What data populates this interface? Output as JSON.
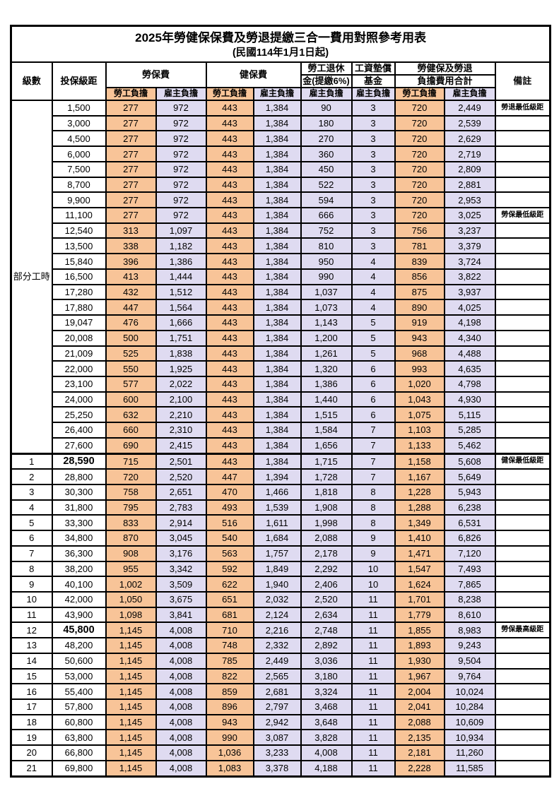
{
  "title": "2025年勞健保保費及勞退提繳三合一費用對照參考用表",
  "subtitle": "(民國114年1月1日起)",
  "columns": {
    "level": "級數",
    "bracket": "投保級距",
    "labor_insurance": "勞保費",
    "health_insurance": "健保費",
    "pension_line1": "勞工退休",
    "pension_line2": "金(提繳6%)",
    "wage_fund_line1": "工資墊償",
    "wage_fund_line2": "基金",
    "total_line1": "勞健保及勞退",
    "total_line2": "負擔費用合計",
    "notes": "備註"
  },
  "subheaders": {
    "employee": "勞工負擔",
    "employer": "雇主負擔"
  },
  "part_time": {
    "label": "部分工時",
    "rowspan": 23
  },
  "colors": {
    "employee_fill": "#F8C498",
    "employer_fill": "#DFDBF1",
    "highlight_value": "#E85A5A",
    "note_red": "#F13E3E",
    "border": "#000000"
  },
  "rows": [
    {
      "level": "",
      "bracket": "1,500",
      "values": [
        "277",
        "972",
        "443",
        "1,384",
        "90",
        "3",
        "720",
        "2,449"
      ],
      "note": "勞退最低級距",
      "highlight": true,
      "bold_bracket": false,
      "section_start": false
    },
    {
      "level": "",
      "bracket": "3,000",
      "values": [
        "277",
        "972",
        "443",
        "1,384",
        "180",
        "3",
        "720",
        "2,539"
      ],
      "note": "",
      "highlight": false,
      "bold_bracket": false,
      "section_start": false
    },
    {
      "level": "",
      "bracket": "4,500",
      "values": [
        "277",
        "972",
        "443",
        "1,384",
        "270",
        "3",
        "720",
        "2,629"
      ],
      "note": "",
      "highlight": false,
      "bold_bracket": false,
      "section_start": false
    },
    {
      "level": "",
      "bracket": "6,000",
      "values": [
        "277",
        "972",
        "443",
        "1,384",
        "360",
        "3",
        "720",
        "2,719"
      ],
      "note": "",
      "highlight": false,
      "bold_bracket": false,
      "section_start": false
    },
    {
      "level": "",
      "bracket": "7,500",
      "values": [
        "277",
        "972",
        "443",
        "1,384",
        "450",
        "3",
        "720",
        "2,809"
      ],
      "note": "",
      "highlight": false,
      "bold_bracket": false,
      "section_start": false
    },
    {
      "level": "",
      "bracket": "8,700",
      "values": [
        "277",
        "972",
        "443",
        "1,384",
        "522",
        "3",
        "720",
        "2,881"
      ],
      "note": "",
      "highlight": false,
      "bold_bracket": false,
      "section_start": false
    },
    {
      "level": "",
      "bracket": "9,900",
      "values": [
        "277",
        "972",
        "443",
        "1,384",
        "594",
        "3",
        "720",
        "2,953"
      ],
      "note": "",
      "highlight": false,
      "bold_bracket": false,
      "section_start": false
    },
    {
      "level": "",
      "bracket": "11,100",
      "values": [
        "277",
        "972",
        "443",
        "1,384",
        "666",
        "3",
        "720",
        "3,025"
      ],
      "note": "勞保最低級距",
      "highlight": true,
      "bold_bracket": false,
      "section_start": false
    },
    {
      "level": "",
      "bracket": "12,540",
      "values": [
        "313",
        "1,097",
        "443",
        "1,384",
        "752",
        "3",
        "756",
        "3,237"
      ],
      "note": "",
      "highlight": false,
      "bold_bracket": false,
      "section_start": false
    },
    {
      "level": "",
      "bracket": "13,500",
      "values": [
        "338",
        "1,182",
        "443",
        "1,384",
        "810",
        "3",
        "781",
        "3,379"
      ],
      "note": "",
      "highlight": false,
      "bold_bracket": false,
      "section_start": false
    },
    {
      "level": "",
      "bracket": "15,840",
      "values": [
        "396",
        "1,386",
        "443",
        "1,384",
        "950",
        "4",
        "839",
        "3,724"
      ],
      "note": "",
      "highlight": false,
      "bold_bracket": false,
      "section_start": false
    },
    {
      "level": "",
      "bracket": "16,500",
      "values": [
        "413",
        "1,444",
        "443",
        "1,384",
        "990",
        "4",
        "856",
        "3,822"
      ],
      "note": "",
      "highlight": false,
      "bold_bracket": false,
      "section_start": false
    },
    {
      "level": "",
      "bracket": "17,280",
      "values": [
        "432",
        "1,512",
        "443",
        "1,384",
        "1,037",
        "4",
        "875",
        "3,937"
      ],
      "note": "",
      "highlight": false,
      "bold_bracket": false,
      "section_start": false
    },
    {
      "level": "",
      "bracket": "17,880",
      "values": [
        "447",
        "1,564",
        "443",
        "1,384",
        "1,073",
        "4",
        "890",
        "4,025"
      ],
      "note": "",
      "highlight": false,
      "bold_bracket": false,
      "section_start": false
    },
    {
      "level": "",
      "bracket": "19,047",
      "values": [
        "476",
        "1,666",
        "443",
        "1,384",
        "1,143",
        "5",
        "919",
        "4,198"
      ],
      "note": "",
      "highlight": false,
      "bold_bracket": false,
      "section_start": false
    },
    {
      "level": "",
      "bracket": "20,008",
      "values": [
        "500",
        "1,751",
        "443",
        "1,384",
        "1,200",
        "5",
        "943",
        "4,340"
      ],
      "note": "",
      "highlight": false,
      "bold_bracket": false,
      "section_start": false
    },
    {
      "level": "",
      "bracket": "21,009",
      "values": [
        "525",
        "1,838",
        "443",
        "1,384",
        "1,261",
        "5",
        "968",
        "4,488"
      ],
      "note": "",
      "highlight": false,
      "bold_bracket": false,
      "section_start": false
    },
    {
      "level": "",
      "bracket": "22,000",
      "values": [
        "550",
        "1,925",
        "443",
        "1,384",
        "1,320",
        "6",
        "993",
        "4,635"
      ],
      "note": "",
      "highlight": false,
      "bold_bracket": false,
      "section_start": false
    },
    {
      "level": "",
      "bracket": "23,100",
      "values": [
        "577",
        "2,022",
        "443",
        "1,384",
        "1,386",
        "6",
        "1,020",
        "4,798"
      ],
      "note": "",
      "highlight": false,
      "bold_bracket": false,
      "section_start": false
    },
    {
      "level": "",
      "bracket": "24,000",
      "values": [
        "600",
        "2,100",
        "443",
        "1,384",
        "1,440",
        "6",
        "1,043",
        "4,930"
      ],
      "note": "",
      "highlight": false,
      "bold_bracket": false,
      "section_start": false
    },
    {
      "level": "",
      "bracket": "25,250",
      "values": [
        "632",
        "2,210",
        "443",
        "1,384",
        "1,515",
        "6",
        "1,075",
        "5,115"
      ],
      "note": "",
      "highlight": false,
      "bold_bracket": false,
      "section_start": false
    },
    {
      "level": "",
      "bracket": "26,400",
      "values": [
        "660",
        "2,310",
        "443",
        "1,384",
        "1,584",
        "7",
        "1,103",
        "5,285"
      ],
      "note": "",
      "highlight": false,
      "bold_bracket": false,
      "section_start": false
    },
    {
      "level": "",
      "bracket": "27,600",
      "values": [
        "690",
        "2,415",
        "443",
        "1,384",
        "1,656",
        "7",
        "1,133",
        "5,462"
      ],
      "note": "",
      "highlight": false,
      "bold_bracket": false,
      "section_start": false
    },
    {
      "level": "1",
      "bracket": "28,590",
      "values": [
        "715",
        "2,501",
        "443",
        "1,384",
        "1,715",
        "7",
        "1,158",
        "5,608"
      ],
      "note": "健保最低級距",
      "highlight": true,
      "bold_bracket": true,
      "section_start": true
    },
    {
      "level": "2",
      "bracket": "28,800",
      "values": [
        "720",
        "2,520",
        "447",
        "1,394",
        "1,728",
        "7",
        "1,167",
        "5,649"
      ],
      "note": "",
      "highlight": false,
      "bold_bracket": false,
      "section_start": false
    },
    {
      "level": "3",
      "bracket": "30,300",
      "values": [
        "758",
        "2,651",
        "470",
        "1,466",
        "1,818",
        "8",
        "1,228",
        "5,943"
      ],
      "note": "",
      "highlight": false,
      "bold_bracket": false,
      "section_start": false
    },
    {
      "level": "4",
      "bracket": "31,800",
      "values": [
        "795",
        "2,783",
        "493",
        "1,539",
        "1,908",
        "8",
        "1,288",
        "6,238"
      ],
      "note": "",
      "highlight": false,
      "bold_bracket": false,
      "section_start": false
    },
    {
      "level": "5",
      "bracket": "33,300",
      "values": [
        "833",
        "2,914",
        "516",
        "1,611",
        "1,998",
        "8",
        "1,349",
        "6,531"
      ],
      "note": "",
      "highlight": false,
      "bold_bracket": false,
      "section_start": false
    },
    {
      "level": "6",
      "bracket": "34,800",
      "values": [
        "870",
        "3,045",
        "540",
        "1,684",
        "2,088",
        "9",
        "1,410",
        "6,826"
      ],
      "note": "",
      "highlight": false,
      "bold_bracket": false,
      "section_start": false
    },
    {
      "level": "7",
      "bracket": "36,300",
      "values": [
        "908",
        "3,176",
        "563",
        "1,757",
        "2,178",
        "9",
        "1,471",
        "7,120"
      ],
      "note": "",
      "highlight": false,
      "bold_bracket": false,
      "section_start": false
    },
    {
      "level": "8",
      "bracket": "38,200",
      "values": [
        "955",
        "3,342",
        "592",
        "1,849",
        "2,292",
        "10",
        "1,547",
        "7,493"
      ],
      "note": "",
      "highlight": false,
      "bold_bracket": false,
      "section_start": false
    },
    {
      "level": "9",
      "bracket": "40,100",
      "values": [
        "1,002",
        "3,509",
        "622",
        "1,940",
        "2,406",
        "10",
        "1,624",
        "7,865"
      ],
      "note": "",
      "highlight": false,
      "bold_bracket": false,
      "section_start": false
    },
    {
      "level": "10",
      "bracket": "42,000",
      "values": [
        "1,050",
        "3,675",
        "651",
        "2,032",
        "2,520",
        "11",
        "1,701",
        "8,238"
      ],
      "note": "",
      "highlight": false,
      "bold_bracket": false,
      "section_start": false
    },
    {
      "level": "11",
      "bracket": "43,900",
      "values": [
        "1,098",
        "3,841",
        "681",
        "2,124",
        "2,634",
        "11",
        "1,779",
        "8,610"
      ],
      "note": "",
      "highlight": false,
      "bold_bracket": false,
      "section_start": false
    },
    {
      "level": "12",
      "bracket": "45,800",
      "values": [
        "1,145",
        "4,008",
        "710",
        "2,216",
        "2,748",
        "11",
        "1,855",
        "8,983"
      ],
      "note": "勞保最高級距",
      "highlight": true,
      "bold_bracket": true,
      "section_start": false
    },
    {
      "level": "13",
      "bracket": "48,200",
      "values": [
        "1,145",
        "4,008",
        "748",
        "2,332",
        "2,892",
        "11",
        "1,893",
        "9,243"
      ],
      "note": "",
      "highlight": false,
      "bold_bracket": false,
      "section_start": false
    },
    {
      "level": "14",
      "bracket": "50,600",
      "values": [
        "1,145",
        "4,008",
        "785",
        "2,449",
        "3,036",
        "11",
        "1,930",
        "9,504"
      ],
      "note": "",
      "highlight": false,
      "bold_bracket": false,
      "section_start": false
    },
    {
      "level": "15",
      "bracket": "53,000",
      "values": [
        "1,145",
        "4,008",
        "822",
        "2,565",
        "3,180",
        "11",
        "1,967",
        "9,764"
      ],
      "note": "",
      "highlight": false,
      "bold_bracket": false,
      "section_start": false
    },
    {
      "level": "16",
      "bracket": "55,400",
      "values": [
        "1,145",
        "4,008",
        "859",
        "2,681",
        "3,324",
        "11",
        "2,004",
        "10,024"
      ],
      "note": "",
      "highlight": false,
      "bold_bracket": false,
      "section_start": false
    },
    {
      "level": "17",
      "bracket": "57,800",
      "values": [
        "1,145",
        "4,008",
        "896",
        "2,797",
        "3,468",
        "11",
        "2,041",
        "10,284"
      ],
      "note": "",
      "highlight": false,
      "bold_bracket": false,
      "section_start": false
    },
    {
      "level": "18",
      "bracket": "60,800",
      "values": [
        "1,145",
        "4,008",
        "943",
        "2,942",
        "3,648",
        "11",
        "2,088",
        "10,609"
      ],
      "note": "",
      "highlight": false,
      "bold_bracket": false,
      "section_start": false
    },
    {
      "level": "19",
      "bracket": "63,800",
      "values": [
        "1,145",
        "4,008",
        "990",
        "3,087",
        "3,828",
        "11",
        "2,135",
        "10,934"
      ],
      "note": "",
      "highlight": false,
      "bold_bracket": false,
      "section_start": false
    },
    {
      "level": "20",
      "bracket": "66,800",
      "values": [
        "1,145",
        "4,008",
        "1,036",
        "3,233",
        "4,008",
        "11",
        "2,181",
        "11,260"
      ],
      "note": "",
      "highlight": false,
      "bold_bracket": false,
      "section_start": false
    },
    {
      "level": "21",
      "bracket": "69,800",
      "values": [
        "1,145",
        "4,008",
        "1,083",
        "3,378",
        "4,188",
        "11",
        "2,228",
        "11,585"
      ],
      "note": "",
      "highlight": false,
      "bold_bracket": false,
      "section_start": false
    }
  ]
}
